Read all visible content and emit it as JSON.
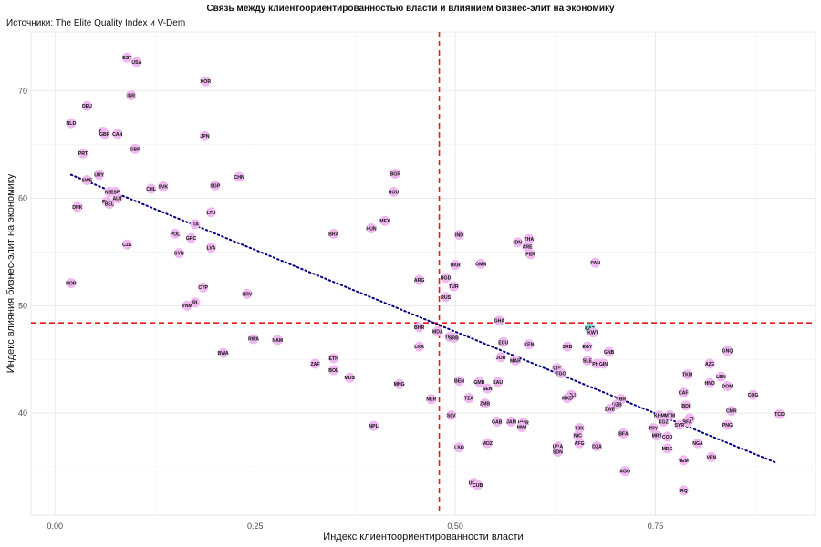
{
  "title": "Связь между клиентоориентированностью власти и влиянием бизнес-элит на экономику",
  "subtitle": "Источники: The Elite Quality Index и V-Dem",
  "chart_data": {
    "type": "scatter",
    "title": "Связь между клиентоориентированностью власти и влиянием бизнес-элит на экономику",
    "subtitle": "Источники: The Elite Quality Index и V-Dem",
    "xlabel": "Индекс клиентоориентированности власти",
    "ylabel": "Индекс влияния бизнес-элит на экономику",
    "xlim": [
      -0.03,
      0.95
    ],
    "ylim": [
      30.5,
      75.5
    ],
    "xticks": [
      0.0,
      0.25,
      0.5,
      0.75
    ],
    "xtick_labels": [
      "0.00",
      "0.25",
      "0.50",
      "0.75"
    ],
    "yticks": [
      40,
      50,
      60,
      70
    ],
    "ytick_labels": [
      "40",
      "50",
      "60",
      "70"
    ],
    "grid": true,
    "reference_lines": {
      "x": 0.48,
      "y": 48.4,
      "color": "#e41a1c",
      "style": "dashed"
    },
    "trend_line": {
      "x": [
        0.02,
        0.9
      ],
      "y": [
        62.2,
        35.4
      ],
      "color": "#000080",
      "style": "dotted"
    },
    "point_color": "#f0b8f0",
    "highlight_color": "#7fd6d6",
    "points": [
      {
        "label": "EST",
        "x": 0.09,
        "y": 73.1
      },
      {
        "label": "USA",
        "x": 0.102,
        "y": 72.7
      },
      {
        "label": "KOR",
        "x": 0.188,
        "y": 70.9
      },
      {
        "label": "ISR",
        "x": 0.095,
        "y": 69.6
      },
      {
        "label": "DEU",
        "x": 0.04,
        "y": 68.6
      },
      {
        "label": "NLD",
        "x": 0.02,
        "y": 67.0
      },
      {
        "label": "FIN",
        "x": 0.06,
        "y": 66.2
      },
      {
        "label": "GBR",
        "x": 0.062,
        "y": 66.0
      },
      {
        "label": "CAN",
        "x": 0.078,
        "y": 66.0
      },
      {
        "label": "JPN",
        "x": 0.187,
        "y": 65.8
      },
      {
        "label": "GBR",
        "x": 0.1,
        "y": 64.6
      },
      {
        "label": "PRT",
        "x": 0.035,
        "y": 64.2
      },
      {
        "label": "CHN",
        "x": 0.23,
        "y": 62.0
      },
      {
        "label": "BGR",
        "x": 0.425,
        "y": 62.3
      },
      {
        "label": "URY",
        "x": 0.055,
        "y": 62.2
      },
      {
        "label": "SWE",
        "x": 0.04,
        "y": 61.7
      },
      {
        "label": "SVK",
        "x": 0.135,
        "y": 61.1
      },
      {
        "label": "SGP",
        "x": 0.2,
        "y": 61.2
      },
      {
        "label": "CHL",
        "x": 0.12,
        "y": 60.9
      },
      {
        "label": "NZL",
        "x": 0.068,
        "y": 60.6
      },
      {
        "label": "ESP",
        "x": 0.075,
        "y": 60.6
      },
      {
        "label": "AUT",
        "x": 0.078,
        "y": 60.0
      },
      {
        "label": "ROU",
        "x": 0.423,
        "y": 60.6
      },
      {
        "label": "FRA",
        "x": 0.065,
        "y": 59.7
      },
      {
        "label": "BEL",
        "x": 0.068,
        "y": 59.5
      },
      {
        "label": "DNK",
        "x": 0.028,
        "y": 59.2
      },
      {
        "label": "LTU",
        "x": 0.195,
        "y": 58.7
      },
      {
        "label": "MEX",
        "x": 0.412,
        "y": 57.9
      },
      {
        "label": "ITA",
        "x": 0.175,
        "y": 57.6
      },
      {
        "label": "HUN",
        "x": 0.395,
        "y": 57.2
      },
      {
        "label": "BRA",
        "x": 0.348,
        "y": 56.7
      },
      {
        "label": "POL",
        "x": 0.15,
        "y": 56.7
      },
      {
        "label": "GRC",
        "x": 0.17,
        "y": 56.3
      },
      {
        "label": "CZE",
        "x": 0.09,
        "y": 55.7
      },
      {
        "label": "LVA",
        "x": 0.195,
        "y": 55.4
      },
      {
        "label": "SYN",
        "x": 0.155,
        "y": 54.9
      },
      {
        "label": "IND",
        "x": 0.505,
        "y": 56.6
      },
      {
        "label": "THA",
        "x": 0.592,
        "y": 56.2
      },
      {
        "label": "IDN",
        "x": 0.578,
        "y": 55.9
      },
      {
        "label": "ARE",
        "x": 0.59,
        "y": 55.5
      },
      {
        "label": "PER",
        "x": 0.594,
        "y": 54.8
      },
      {
        "label": "PAN",
        "x": 0.675,
        "y": 54.0
      },
      {
        "label": "OMN",
        "x": 0.532,
        "y": 53.9
      },
      {
        "label": "UKR",
        "x": 0.5,
        "y": 53.8
      },
      {
        "label": "ARG",
        "x": 0.455,
        "y": 52.4
      },
      {
        "label": "BGD",
        "x": 0.488,
        "y": 52.6
      },
      {
        "label": "TUR",
        "x": 0.498,
        "y": 51.8
      },
      {
        "label": "NOR",
        "x": 0.02,
        "y": 52.1
      },
      {
        "label": "CYP",
        "x": 0.185,
        "y": 51.7
      },
      {
        "label": "HRV",
        "x": 0.24,
        "y": 51.1
      },
      {
        "label": "RUS",
        "x": 0.488,
        "y": 50.8
      },
      {
        "label": "IRL",
        "x": 0.175,
        "y": 50.3
      },
      {
        "label": "VNM",
        "x": 0.165,
        "y": 50.0
      },
      {
        "label": "GHA",
        "x": 0.555,
        "y": 48.6
      },
      {
        "label": "BHR",
        "x": 0.455,
        "y": 48.0
      },
      {
        "label": "MDA",
        "x": 0.478,
        "y": 47.6
      },
      {
        "label": "KAZ",
        "x": 0.668,
        "y": 47.9,
        "highlight": true
      },
      {
        "label": "KWT",
        "x": 0.672,
        "y": 47.5
      },
      {
        "label": "TUN",
        "x": 0.493,
        "y": 47.1
      },
      {
        "label": "SRB",
        "x": 0.498,
        "y": 47.0
      },
      {
        "label": "RWA",
        "x": 0.248,
        "y": 46.9
      },
      {
        "label": "NAM",
        "x": 0.278,
        "y": 46.8
      },
      {
        "label": "ECU",
        "x": 0.56,
        "y": 46.6
      },
      {
        "label": "KEN",
        "x": 0.592,
        "y": 46.4
      },
      {
        "label": "LKA",
        "x": 0.455,
        "y": 46.2
      },
      {
        "label": "SRB",
        "x": 0.64,
        "y": 46.2
      },
      {
        "label": "EGY",
        "x": 0.665,
        "y": 46.2
      },
      {
        "label": "GNQ",
        "x": 0.84,
        "y": 45.8
      },
      {
        "label": "GNB",
        "x": 0.692,
        "y": 45.7
      },
      {
        "label": "BWA",
        "x": 0.21,
        "y": 45.6
      },
      {
        "label": "JOR",
        "x": 0.557,
        "y": 45.2
      },
      {
        "label": "MAR",
        "x": 0.575,
        "y": 44.9
      },
      {
        "label": "ETH",
        "x": 0.348,
        "y": 45.1
      },
      {
        "label": "SLE",
        "x": 0.665,
        "y": 44.9
      },
      {
        "label": "PHL",
        "x": 0.677,
        "y": 44.6
      },
      {
        "label": "GIN",
        "x": 0.685,
        "y": 44.6
      },
      {
        "label": "AZE",
        "x": 0.818,
        "y": 44.6
      },
      {
        "label": "ZAF",
        "x": 0.325,
        "y": 44.6
      },
      {
        "label": "BOL",
        "x": 0.348,
        "y": 44.0
      },
      {
        "label": "CIV",
        "x": 0.627,
        "y": 44.2
      },
      {
        "label": "TGO",
        "x": 0.632,
        "y": 43.7
      },
      {
        "label": "TKM",
        "x": 0.79,
        "y": 43.6
      },
      {
        "label": "LBN",
        "x": 0.832,
        "y": 43.4
      },
      {
        "label": "MUS",
        "x": 0.368,
        "y": 43.3
      },
      {
        "label": "BEN",
        "x": 0.505,
        "y": 43.0
      },
      {
        "label": "GMB",
        "x": 0.53,
        "y": 42.9
      },
      {
        "label": "SAU",
        "x": 0.553,
        "y": 42.9
      },
      {
        "label": "HND",
        "x": 0.818,
        "y": 42.8
      },
      {
        "label": "DOM",
        "x": 0.84,
        "y": 42.5
      },
      {
        "label": "MNG",
        "x": 0.43,
        "y": 42.7
      },
      {
        "label": "SEN",
        "x": 0.54,
        "y": 42.3
      },
      {
        "label": "CAF",
        "x": 0.785,
        "y": 41.9
      },
      {
        "label": "COG",
        "x": 0.872,
        "y": 41.7
      },
      {
        "label": "MLI",
        "x": 0.645,
        "y": 41.7
      },
      {
        "label": "MKD",
        "x": 0.64,
        "y": 41.4
      },
      {
        "label": "TZA",
        "x": 0.517,
        "y": 41.4
      },
      {
        "label": "NER",
        "x": 0.47,
        "y": 41.3
      },
      {
        "label": "LBR",
        "x": 0.707,
        "y": 41.3
      },
      {
        "label": "ZMB",
        "x": 0.537,
        "y": 40.9
      },
      {
        "label": "BDI",
        "x": 0.788,
        "y": 40.7
      },
      {
        "label": "UZB",
        "x": 0.702,
        "y": 40.8
      },
      {
        "label": "ZWE",
        "x": 0.693,
        "y": 40.4
      },
      {
        "label": "CMR",
        "x": 0.845,
        "y": 40.2
      },
      {
        "label": "TCD",
        "x": 0.905,
        "y": 39.9
      },
      {
        "label": "KHM",
        "x": 0.755,
        "y": 39.8
      },
      {
        "label": "MTM",
        "x": 0.768,
        "y": 39.8
      },
      {
        "label": "HTI",
        "x": 0.793,
        "y": 39.5
      },
      {
        "label": "SLV",
        "x": 0.495,
        "y": 39.8
      },
      {
        "label": "KGZ",
        "x": 0.76,
        "y": 39.2
      },
      {
        "label": "BFA",
        "x": 0.79,
        "y": 39.2
      },
      {
        "label": "GAB",
        "x": 0.552,
        "y": 39.2
      },
      {
        "label": "JAM",
        "x": 0.57,
        "y": 39.2
      },
      {
        "label": "MMR",
        "x": 0.585,
        "y": 39.1
      },
      {
        "label": "MWI",
        "x": 0.583,
        "y": 38.7
      },
      {
        "label": "SYR",
        "x": 0.78,
        "y": 38.9
      },
      {
        "label": "PNG",
        "x": 0.84,
        "y": 38.9
      },
      {
        "label": "NPL",
        "x": 0.398,
        "y": 38.8
      },
      {
        "label": "TJK",
        "x": 0.655,
        "y": 38.6
      },
      {
        "label": "PRY",
        "x": 0.747,
        "y": 38.6
      },
      {
        "label": "BFA",
        "x": 0.71,
        "y": 38.1
      },
      {
        "label": "NIC",
        "x": 0.653,
        "y": 37.9
      },
      {
        "label": "MRT",
        "x": 0.752,
        "y": 37.9
      },
      {
        "label": "COD",
        "x": 0.765,
        "y": 37.8
      },
      {
        "label": "AFG",
        "x": 0.655,
        "y": 37.2
      },
      {
        "label": "NGA",
        "x": 0.803,
        "y": 37.2
      },
      {
        "label": "MOZ",
        "x": 0.54,
        "y": 37.2
      },
      {
        "label": "UGA",
        "x": 0.628,
        "y": 36.9
      },
      {
        "label": "DZA",
        "x": 0.677,
        "y": 36.9
      },
      {
        "label": "LSO",
        "x": 0.505,
        "y": 36.8
      },
      {
        "label": "MDG",
        "x": 0.765,
        "y": 36.7
      },
      {
        "label": "SDN",
        "x": 0.628,
        "y": 36.4
      },
      {
        "label": "VEN",
        "x": 0.82,
        "y": 35.9
      },
      {
        "label": "YEM",
        "x": 0.785,
        "y": 35.6
      },
      {
        "label": "AGO",
        "x": 0.712,
        "y": 34.6
      },
      {
        "label": "UKB",
        "x": 0.523,
        "y": 33.5
      },
      {
        "label": "CUB",
        "x": 0.528,
        "y": 33.3
      },
      {
        "label": "IRQ",
        "x": 0.785,
        "y": 32.8
      }
    ]
  }
}
